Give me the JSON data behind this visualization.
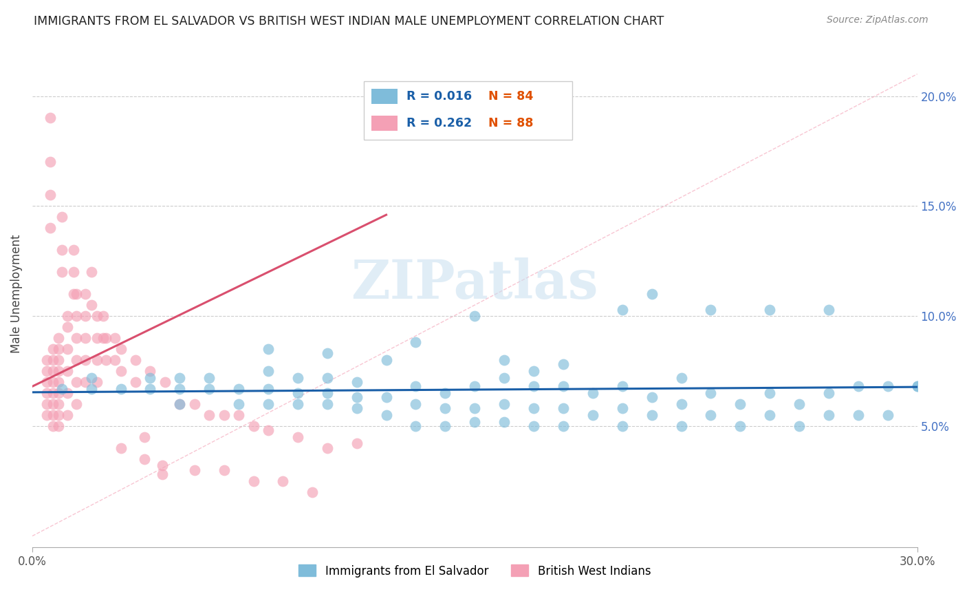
{
  "title": "IMMIGRANTS FROM EL SALVADOR VS BRITISH WEST INDIAN MALE UNEMPLOYMENT CORRELATION CHART",
  "source": "Source: ZipAtlas.com",
  "ylabel": "Male Unemployment",
  "legend_blue_r": "0.016",
  "legend_blue_n": "84",
  "legend_pink_r": "0.262",
  "legend_pink_n": "88",
  "legend_blue_label": "Immigrants from El Salvador",
  "legend_pink_label": "British West Indians",
  "xlim": [
    0.0,
    0.3
  ],
  "ylim": [
    -0.005,
    0.225
  ],
  "yticks": [
    0.05,
    0.1,
    0.15,
    0.2
  ],
  "ytick_labels": [
    "5.0%",
    "10.0%",
    "15.0%",
    "20.0%"
  ],
  "watermark": "ZIPatlas",
  "blue_color": "#7fbcda",
  "pink_color": "#f4a0b5",
  "blue_line_color": "#1a5fa8",
  "pink_line_color": "#d94f6e",
  "grid_color": "#cccccc",
  "blue_scatter_x": [
    0.01,
    0.02,
    0.02,
    0.03,
    0.04,
    0.04,
    0.05,
    0.05,
    0.05,
    0.06,
    0.06,
    0.07,
    0.07,
    0.08,
    0.08,
    0.08,
    0.09,
    0.09,
    0.09,
    0.1,
    0.1,
    0.1,
    0.11,
    0.11,
    0.11,
    0.12,
    0.12,
    0.13,
    0.13,
    0.13,
    0.14,
    0.14,
    0.14,
    0.15,
    0.15,
    0.15,
    0.16,
    0.16,
    0.16,
    0.17,
    0.17,
    0.17,
    0.18,
    0.18,
    0.18,
    0.19,
    0.19,
    0.2,
    0.2,
    0.2,
    0.21,
    0.21,
    0.22,
    0.22,
    0.22,
    0.23,
    0.23,
    0.24,
    0.24,
    0.25,
    0.25,
    0.26,
    0.26,
    0.27,
    0.27,
    0.28,
    0.28,
    0.29,
    0.29,
    0.3,
    0.15,
    0.2,
    0.25,
    0.27,
    0.3,
    0.12,
    0.16,
    0.21,
    0.1,
    0.08,
    0.18,
    0.23,
    0.13,
    0.17
  ],
  "blue_scatter_y": [
    0.067,
    0.067,
    0.072,
    0.067,
    0.067,
    0.072,
    0.06,
    0.067,
    0.072,
    0.067,
    0.072,
    0.06,
    0.067,
    0.06,
    0.067,
    0.075,
    0.06,
    0.065,
    0.072,
    0.06,
    0.065,
    0.072,
    0.058,
    0.063,
    0.07,
    0.055,
    0.063,
    0.05,
    0.06,
    0.068,
    0.05,
    0.058,
    0.065,
    0.052,
    0.058,
    0.068,
    0.052,
    0.06,
    0.072,
    0.05,
    0.058,
    0.068,
    0.05,
    0.058,
    0.068,
    0.055,
    0.065,
    0.05,
    0.058,
    0.068,
    0.055,
    0.063,
    0.05,
    0.06,
    0.072,
    0.055,
    0.065,
    0.05,
    0.06,
    0.055,
    0.065,
    0.05,
    0.06,
    0.055,
    0.065,
    0.055,
    0.068,
    0.055,
    0.068,
    0.068,
    0.1,
    0.103,
    0.103,
    0.103,
    0.068,
    0.08,
    0.08,
    0.11,
    0.083,
    0.085,
    0.078,
    0.103,
    0.088,
    0.075
  ],
  "pink_scatter_x": [
    0.005,
    0.005,
    0.005,
    0.005,
    0.005,
    0.005,
    0.007,
    0.007,
    0.007,
    0.007,
    0.007,
    0.007,
    0.007,
    0.007,
    0.009,
    0.009,
    0.009,
    0.009,
    0.009,
    0.009,
    0.009,
    0.009,
    0.009,
    0.012,
    0.012,
    0.012,
    0.012,
    0.012,
    0.012,
    0.015,
    0.015,
    0.015,
    0.015,
    0.015,
    0.015,
    0.018,
    0.018,
    0.018,
    0.018,
    0.018,
    0.022,
    0.022,
    0.022,
    0.022,
    0.025,
    0.025,
    0.028,
    0.028,
    0.03,
    0.03,
    0.035,
    0.035,
    0.04,
    0.045,
    0.05,
    0.055,
    0.06,
    0.065,
    0.07,
    0.075,
    0.08,
    0.09,
    0.1,
    0.11,
    0.006,
    0.006,
    0.006,
    0.006,
    0.01,
    0.01,
    0.01,
    0.014,
    0.014,
    0.014,
    0.02,
    0.02,
    0.024,
    0.024,
    0.03,
    0.038,
    0.038,
    0.044,
    0.044,
    0.055,
    0.065,
    0.075,
    0.085,
    0.095
  ],
  "pink_scatter_y": [
    0.07,
    0.075,
    0.08,
    0.065,
    0.06,
    0.055,
    0.085,
    0.08,
    0.075,
    0.07,
    0.065,
    0.06,
    0.055,
    0.05,
    0.09,
    0.085,
    0.08,
    0.075,
    0.07,
    0.065,
    0.06,
    0.055,
    0.05,
    0.1,
    0.095,
    0.085,
    0.075,
    0.065,
    0.055,
    0.11,
    0.1,
    0.09,
    0.08,
    0.07,
    0.06,
    0.11,
    0.1,
    0.09,
    0.08,
    0.07,
    0.1,
    0.09,
    0.08,
    0.07,
    0.09,
    0.08,
    0.09,
    0.08,
    0.085,
    0.075,
    0.08,
    0.07,
    0.075,
    0.07,
    0.06,
    0.06,
    0.055,
    0.055,
    0.055,
    0.05,
    0.048,
    0.045,
    0.04,
    0.042,
    0.19,
    0.17,
    0.155,
    0.14,
    0.145,
    0.13,
    0.12,
    0.13,
    0.12,
    0.11,
    0.12,
    0.105,
    0.1,
    0.09,
    0.04,
    0.035,
    0.045,
    0.032,
    0.028,
    0.03,
    0.03,
    0.025,
    0.025,
    0.02
  ]
}
